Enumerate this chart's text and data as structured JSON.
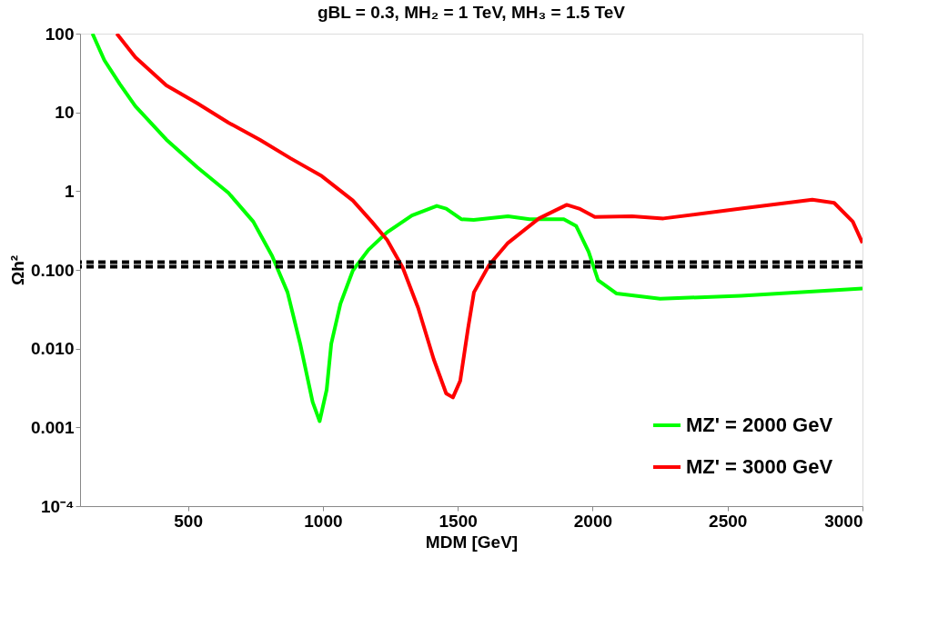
{
  "chart_data": {
    "type": "line",
    "title": "gBL = 0.3, MH₂ = 1 TeV, MH₃ = 1.5 TeV",
    "xlabel": "MDM [GeV]",
    "ylabel": "Ωh²",
    "log": "y",
    "grid": false,
    "legend": "bottom right",
    "line_style": "solid",
    "marker": "none",
    "xlim": [
      100,
      3000
    ],
    "xticks": [
      500,
      1000,
      1500,
      2000,
      2500,
      3000
    ],
    "ylim": [
      0.0001,
      100
    ],
    "yticks": [
      {
        "value": 0.0001,
        "label": "10⁻⁴"
      },
      0.001,
      {
        "value": 0.01,
        "label": "0.010"
      },
      {
        "value": 0.1,
        "label": "0.100"
      },
      1,
      10,
      100
    ],
    "series": [
      {
        "name": "MZ' = 2000 GeV",
        "color": "#00ff00",
        "x": [
          146,
          190,
          247,
          305,
          420,
          535,
          650,
          742,
          812,
          869,
          916,
          962,
          988,
          1014,
          1031,
          1065,
          1111,
          1169,
          1238,
          1330,
          1422,
          1457,
          1513,
          1559,
          1686,
          1766,
          1893,
          1939,
          1985,
          2020,
          2089,
          2250,
          2550,
          3000
        ],
        "values": [
          100,
          46,
          23,
          12,
          4.5,
          2.0,
          0.95,
          0.41,
          0.15,
          0.052,
          0.0115,
          0.0021,
          0.0012,
          0.003,
          0.0115,
          0.037,
          0.098,
          0.18,
          0.3,
          0.49,
          0.65,
          0.6,
          0.44,
          0.43,
          0.48,
          0.44,
          0.44,
          0.36,
          0.17,
          0.074,
          0.05,
          0.043,
          0.047,
          0.058
        ]
      },
      {
        "name": "MZ' = 3000 GeV",
        "color": "#ff0000",
        "x": [
          236,
          305,
          420,
          535,
          650,
          766,
          881,
          996,
          1111,
          1181,
          1238,
          1296,
          1353,
          1411,
          1457,
          1482,
          1509,
          1538,
          1560,
          1616,
          1686,
          1801,
          1904,
          1950,
          2008,
          2146,
          2262,
          2550,
          2814,
          2895,
          2964,
          3000
        ],
        "values": [
          100,
          50,
          22,
          13,
          7.4,
          4.5,
          2.6,
          1.55,
          0.76,
          0.41,
          0.24,
          0.107,
          0.033,
          0.0073,
          0.0027,
          0.0024,
          0.0039,
          0.018,
          0.052,
          0.115,
          0.22,
          0.45,
          0.67,
          0.6,
          0.47,
          0.48,
          0.45,
          0.6,
          0.78,
          0.71,
          0.41,
          0.22
        ]
      }
    ],
    "ref_lines": [
      {
        "axis": "y",
        "value": 0.125,
        "color": "#000000",
        "line_style": "dashed"
      },
      {
        "axis": "y",
        "value": 0.11,
        "color": "#000000",
        "line_style": "dashed"
      }
    ]
  }
}
